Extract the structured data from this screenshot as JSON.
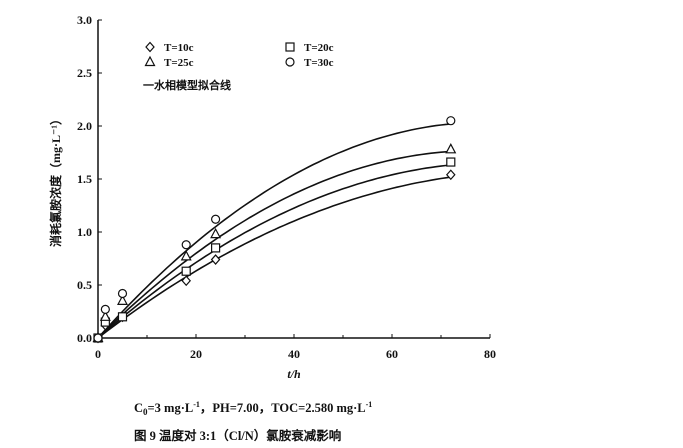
{
  "chart_data": {
    "type": "scatter",
    "title": "图 9    温度对 3:1（Cl/N）氯胺衰减影响",
    "subtitle": "C0=3 mg·L-1，PH=7.00，TOC=2.580 mg·L-1",
    "conditions": {
      "c0": "C",
      "c0_sub": "0",
      "c0_rest": "=3 mg·L",
      "c0_sup": "-1",
      "mid": "，PH=7.00，TOC=2.580 mg·L",
      "end_sup": "-1"
    },
    "caption": "图 9    温度对 3:1（Cl/N）氯胺衰减影响",
    "xlabel": "t/h",
    "ylabel": "消耗氯胺浓度（mg·L⁻¹）",
    "xlim": [
      0,
      80
    ],
    "ylim": [
      0,
      3.0
    ],
    "xticks": [
      "0",
      "20",
      "40",
      "60",
      "80"
    ],
    "yticks": [
      "0.0",
      "0.5",
      "1.0",
      "1.5",
      "2.0",
      "2.5",
      "3.0"
    ],
    "grid": false,
    "legend_position": "top-left",
    "fit_label": "一水相模型拟合线",
    "x": [
      0,
      1.5,
      5,
      18,
      24,
      72
    ],
    "series": [
      {
        "name": "T=10c",
        "marker": "diamond",
        "values": [
          0,
          0.12,
          0.2,
          0.54,
          0.74,
          1.54
        ],
        "fit": {
          "a": 0.0357,
          "b": 0.000203
        }
      },
      {
        "name": "T=20c",
        "marker": "square",
        "values": [
          0,
          0.15,
          0.2,
          0.63,
          0.85,
          1.66
        ],
        "fit": {
          "a": 0.0406,
          "b": 0.000249
        }
      },
      {
        "name": "T=25c",
        "marker": "triangle",
        "values": [
          0,
          0.2,
          0.35,
          0.77,
          0.98,
          1.78
        ],
        "fit": {
          "a": 0.0459,
          "b": 0.000298
        }
      },
      {
        "name": "T=30c",
        "marker": "circle",
        "values": [
          0,
          0.27,
          0.42,
          0.88,
          1.12,
          2.05
        ],
        "fit": {
          "a": 0.0516,
          "b": 0.000327
        }
      }
    ]
  }
}
